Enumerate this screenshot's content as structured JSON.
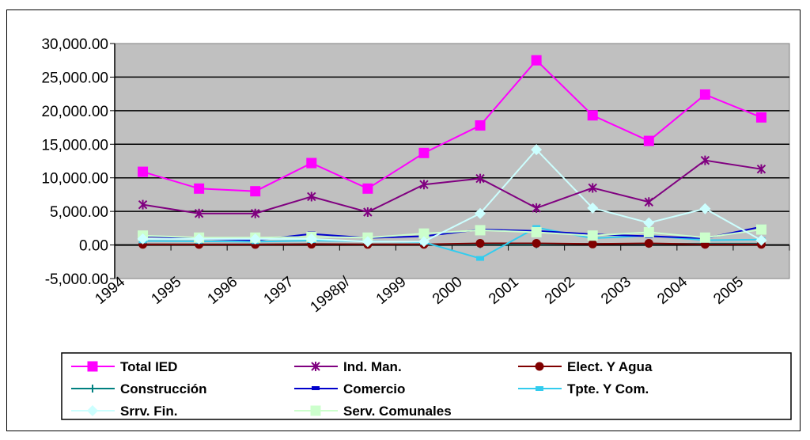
{
  "chart_data": {
    "type": "line",
    "title": "",
    "xlabel": "",
    "ylabel": "",
    "categories": [
      "1994",
      "1995",
      "1996",
      "1997",
      "1998p/",
      "1999",
      "2000",
      "2001",
      "2002",
      "2003",
      "2004",
      "2005"
    ],
    "ylim": [
      -5000,
      30000
    ],
    "yticks": [
      30000,
      25000,
      20000,
      15000,
      10000,
      5000,
      0,
      -5000
    ],
    "ytick_labels": [
      "30,000.00",
      "25,000.00",
      "20,000.00",
      "15,000.00",
      "10,000.00",
      "5,000.00",
      "0.00",
      "-5,000.00"
    ],
    "grid": true,
    "legend_position": "bottom",
    "series": [
      {
        "name": "Total IED",
        "color": "#ff00ff",
        "marker": "square",
        "values": [
          10900,
          8400,
          8000,
          12200,
          8400,
          13700,
          17800,
          27500,
          19300,
          15500,
          22400,
          19000
        ]
      },
      {
        "name": "Ind. Man.",
        "color": "#800080",
        "marker": "asterisk",
        "values": [
          6000,
          4700,
          4700,
          7200,
          4900,
          9000,
          9900,
          5500,
          8500,
          6400,
          12600,
          11300
        ]
      },
      {
        "name": "Elect. Y Agua",
        "color": "#800000",
        "marker": "circle",
        "values": [
          100,
          80,
          80,
          120,
          90,
          100,
          250,
          250,
          150,
          250,
          100,
          100
        ]
      },
      {
        "name": "Construcción",
        "color": "#008080",
        "marker": "plus",
        "values": [
          100,
          100,
          100,
          150,
          100,
          100,
          120,
          100,
          200,
          150,
          200,
          200
        ]
      },
      {
        "name": "Comercio",
        "color": "#0000cc",
        "marker": "dash",
        "values": [
          1300,
          950,
          700,
          1650,
          1050,
          1300,
          2300,
          2100,
          1600,
          1300,
          1000,
          2700
        ]
      },
      {
        "name": "Tpte. Y Com.",
        "color": "#33ccee",
        "marker": "square-small",
        "values": [
          600,
          550,
          500,
          650,
          550,
          400,
          -2000,
          2600,
          1000,
          1400,
          700,
          800
        ]
      },
      {
        "name": "Srrv. Fin.",
        "color": "#ccffff",
        "marker": "diamond",
        "values": [
          900,
          900,
          900,
          900,
          500,
          500,
          4700,
          14200,
          5500,
          3300,
          5400,
          700
        ]
      },
      {
        "name": "Serv. Comunales",
        "color": "#ccffcc",
        "marker": "square",
        "values": [
          1400,
          1100,
          1100,
          1200,
          1100,
          1700,
          2200,
          1900,
          1400,
          1900,
          1100,
          2300
        ]
      }
    ]
  }
}
